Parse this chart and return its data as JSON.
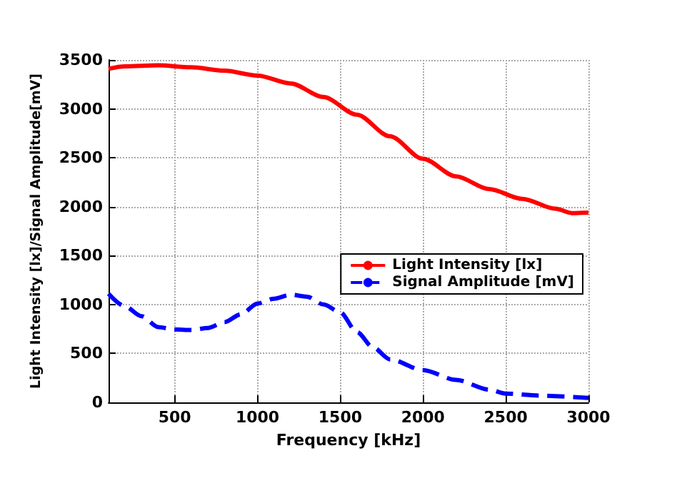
{
  "chart_data": {
    "type": "line",
    "xlabel": "Frequency [kHz]",
    "ylabel": "Light Intensity [lx]/Signal Amplitude[mV]",
    "xlim": [
      100,
      3000
    ],
    "xticks": [
      500,
      1000,
      1500,
      2000,
      2500,
      3000
    ],
    "ylim": [
      0,
      3500
    ],
    "yticks": [
      0,
      500,
      1000,
      1500,
      2000,
      2500,
      3000,
      3500
    ],
    "grid": true,
    "legend": "right",
    "marker": "none",
    "series": [
      {
        "name": "Light Intensity [lx]",
        "color": "#ff0000",
        "line_style": "solid",
        "x": [
          100,
          200,
          400,
          600,
          800,
          1000,
          1200,
          1400,
          1600,
          1800,
          2000,
          2200,
          2400,
          2600,
          2800,
          2900,
          3000
        ],
        "values": [
          3410,
          3435,
          3445,
          3425,
          3390,
          3340,
          3260,
          3120,
          2940,
          2720,
          2490,
          2310,
          2180,
          2080,
          1980,
          1935,
          1940
        ]
      },
      {
        "name": "Signal Amplitude [mV]",
        "color": "#0000ff",
        "line_style": "dashed",
        "x": [
          100,
          200,
          300,
          400,
          500,
          600,
          700,
          800,
          900,
          1000,
          1100,
          1200,
          1300,
          1400,
          1500,
          1600,
          1700,
          1800,
          2000,
          2200,
          2400,
          2500,
          2700,
          3000
        ],
        "values": [
          1110,
          980,
          880,
          770,
          745,
          740,
          760,
          820,
          900,
          1010,
          1060,
          1100,
          1080,
          1000,
          920,
          720,
          560,
          440,
          330,
          230,
          130,
          90,
          70,
          45
        ]
      }
    ]
  }
}
